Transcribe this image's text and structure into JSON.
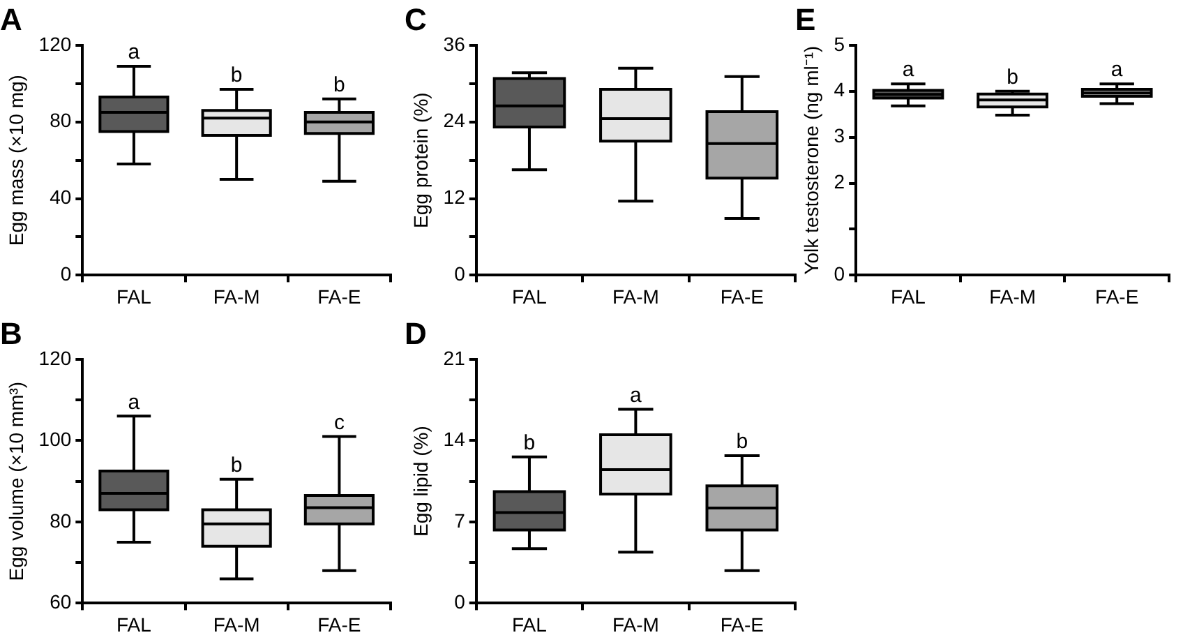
{
  "chart_data": [
    {
      "type": "box",
      "title": "A",
      "ylabel": "Egg mass (×10 mg)",
      "categories": [
        "FAL",
        "FA-M",
        "FA-E"
      ],
      "colors": [
        "#595959",
        "#e6e6e6",
        "#a6a6a6"
      ],
      "boxes": [
        {
          "low": 58,
          "q1": 75,
          "median": 85,
          "q3": 93,
          "high": 109
        },
        {
          "low": 50,
          "q1": 73,
          "median": 82,
          "q3": 86,
          "high": 97
        },
        {
          "low": 49,
          "q1": 74,
          "median": 80,
          "q3": 85,
          "high": 92
        }
      ],
      "ylim": [
        0,
        120
      ],
      "yticks": [
        0,
        {
          "value": 20,
          "label": null
        },
        40,
        {
          "value": 60,
          "label": null
        },
        80,
        {
          "value": 100,
          "label": null
        },
        120
      ],
      "annotations": [
        "a",
        "b",
        "b"
      ]
    },
    {
      "type": "box",
      "title": "C",
      "ylabel": "Egg protein (%)",
      "categories": [
        "FAL",
        "FA-M",
        "FA-E"
      ],
      "colors": [
        "#595959",
        "#e6e6e6",
        "#a6a6a6"
      ],
      "boxes": [
        {
          "low": 16.5,
          "q1": 23.2,
          "median": 26.5,
          "q3": 30.8,
          "high": 31.7
        },
        {
          "low": 11.6,
          "q1": 21,
          "median": 24.5,
          "q3": 29.1,
          "high": 32.4
        },
        {
          "low": 8.9,
          "q1": 15.2,
          "median": 20.6,
          "q3": 25.6,
          "high": 31.1
        }
      ],
      "ylim": [
        0,
        36
      ],
      "yticks": [
        0,
        {
          "value": 6,
          "label": null
        },
        12,
        {
          "value": 18,
          "label": null
        },
        24,
        {
          "value": 30,
          "label": null
        },
        36
      ]
    },
    {
      "type": "box",
      "title": "E",
      "ylabel": "Yolk testosterone (ng ml⁻¹)",
      "categories": [
        "FAL",
        "FA-M",
        "FA-E"
      ],
      "colors": [
        "#595959",
        "#e6e6e6",
        "#a6a6a6"
      ],
      "boxes": [
        {
          "low": 3.68,
          "q1": 3.85,
          "median": 3.93,
          "q3": 4.02,
          "high": 4.16
        },
        {
          "low": 3.48,
          "q1": 3.66,
          "median": 3.81,
          "q3": 3.94,
          "high": 4.0
        },
        {
          "low": 3.73,
          "q1": 3.89,
          "median": 3.96,
          "q3": 4.04,
          "high": 4.16
        }
      ],
      "ylim": [
        0,
        5
      ],
      "yticks": [
        0,
        {
          "value": 1,
          "label": null
        },
        2,
        3,
        4,
        5
      ],
      "annotations": [
        "a",
        "b",
        "a"
      ]
    },
    {
      "type": "box",
      "title": "B",
      "ylabel": "Egg volume (×10 mm³)",
      "categories": [
        "FAL",
        "FA-M",
        "FA-E"
      ],
      "colors": [
        "#595959",
        "#e6e6e6",
        "#a6a6a6"
      ],
      "boxes": [
        {
          "low": 75,
          "q1": 83,
          "median": 87,
          "q3": 92.5,
          "high": 106
        },
        {
          "low": 66,
          "q1": 74,
          "median": 79.5,
          "q3": 83,
          "high": 90.5
        },
        {
          "low": 68,
          "q1": 79.5,
          "median": 83.5,
          "q3": 86.5,
          "high": 101
        }
      ],
      "ylim": [
        60,
        120
      ],
      "yticks": [
        60,
        {
          "value": 70,
          "label": null
        },
        80,
        {
          "value": 90,
          "label": null
        },
        100,
        {
          "value": 110,
          "label": null
        },
        120
      ],
      "annotations": [
        "a",
        "b",
        "c"
      ]
    },
    {
      "type": "box",
      "title": "D",
      "ylabel": "Egg lipid (%)",
      "categories": [
        "FAL",
        "FA-M",
        "FA-E"
      ],
      "colors": [
        "#595959",
        "#e6e6e6",
        "#a6a6a6"
      ],
      "boxes": [
        {
          "low": 4.7,
          "q1": 6.3,
          "median": 7.8,
          "q3": 9.6,
          "high": 12.6
        },
        {
          "low": 4.4,
          "q1": 9.4,
          "median": 11.5,
          "q3": 14.5,
          "high": 16.7
        },
        {
          "low": 2.8,
          "q1": 6.3,
          "median": 8.2,
          "q3": 10.1,
          "high": 12.7
        }
      ],
      "ylim": [
        0,
        21
      ],
      "yticks": [
        0,
        {
          "value": 3.5,
          "label": null
        },
        7,
        {
          "value": 10.5,
          "label": null
        },
        14,
        {
          "value": 17.5,
          "label": null
        },
        21
      ],
      "annotations": [
        "b",
        "a",
        "b"
      ]
    }
  ]
}
